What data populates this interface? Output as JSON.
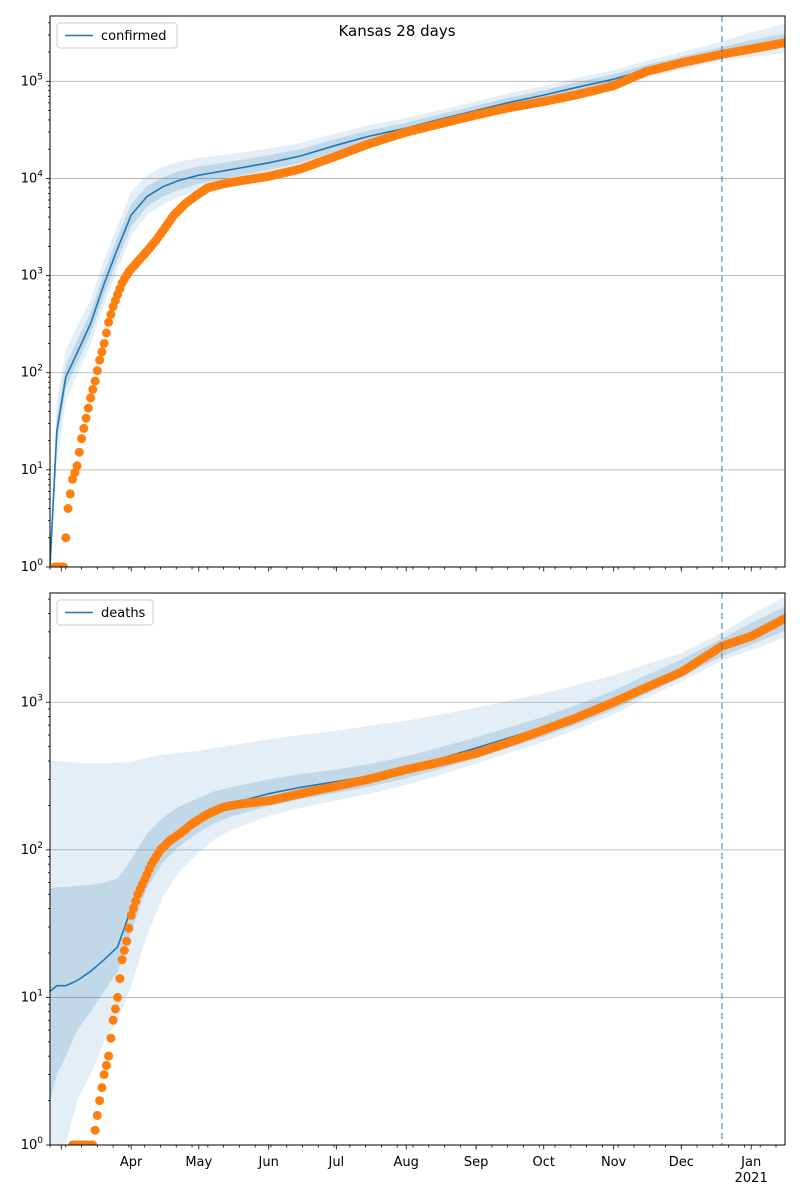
{
  "title": "Kansas 28 days",
  "colors": {
    "model": "#1f77b4",
    "observed": "#ff7f0e",
    "band": "#1f77b4",
    "grid": "#b0b0b0",
    "forecast_line": "#1f77b4"
  },
  "chart_data": [
    {
      "type": "line",
      "name": "confirmed",
      "y_scale": "log",
      "ylim": [
        1,
        470000
      ],
      "xlim": [
        "2020-02-25",
        "2021-01-16"
      ],
      "grid": "y-major",
      "legend": "top-left",
      "x_ticks": [
        "Apr",
        "May",
        "Jun",
        "Jul",
        "Aug",
        "Sep",
        "Oct",
        "Nov",
        "Dec",
        "Jan"
      ],
      "x_tick_sublabel": "2021",
      "y_ticks": [
        "10^0",
        "10^1",
        "10^2",
        "10^3",
        "10^4",
        "10^5"
      ],
      "forecast_start": "2020-12-19",
      "model": {
        "x": [
          "2020-02-25",
          "2020-02-28",
          "2020-03-03",
          "2020-03-08",
          "2020-03-14",
          "2020-03-20",
          "2020-03-26",
          "2020-04-01",
          "2020-04-08",
          "2020-04-15",
          "2020-04-22",
          "2020-05-01",
          "2020-05-08",
          "2020-05-15",
          "2020-06-01",
          "2020-06-15",
          "2020-07-01",
          "2020-07-15",
          "2020-08-01",
          "2020-08-15",
          "2020-09-01",
          "2020-09-15",
          "2020-10-01",
          "2020-10-15",
          "2020-11-01",
          "2020-11-15",
          "2020-12-01",
          "2020-12-19",
          "2021-01-01",
          "2021-01-16"
        ],
        "y": [
          1,
          25,
          90,
          160,
          320,
          820,
          1900,
          4200,
          6500,
          8200,
          9500,
          10800,
          11500,
          12300,
          14500,
          17000,
          22000,
          27000,
          33000,
          40000,
          50000,
          60000,
          72000,
          86000,
          105000,
          130000,
          160000,
          200000,
          230000,
          265000
        ]
      },
      "observed": {
        "x": [
          "2020-02-27",
          "2020-03-02",
          "2020-03-04",
          "2020-03-06",
          "2020-03-08",
          "2020-03-10",
          "2020-03-12",
          "2020-03-14",
          "2020-03-16",
          "2020-03-18",
          "2020-03-20",
          "2020-03-22",
          "2020-03-24",
          "2020-03-26",
          "2020-03-28",
          "2020-03-31",
          "2020-04-04",
          "2020-04-08",
          "2020-04-12",
          "2020-04-16",
          "2020-04-20",
          "2020-04-25",
          "2020-04-30",
          "2020-05-05",
          "2020-05-12",
          "2020-05-20",
          "2020-06-01",
          "2020-06-15",
          "2020-07-01",
          "2020-07-15",
          "2020-08-01",
          "2020-08-15",
          "2020-09-01",
          "2020-09-15",
          "2020-10-01",
          "2020-10-15",
          "2020-11-01",
          "2020-11-15",
          "2020-12-01",
          "2020-12-19",
          "2021-01-01",
          "2021-01-16"
        ],
        "y": [
          1,
          1,
          4,
          8,
          11,
          21,
          34,
          55,
          82,
          135,
          200,
          330,
          480,
          640,
          840,
          1100,
          1400,
          1780,
          2300,
          3100,
          4200,
          5500,
          6700,
          8000,
          8800,
          9500,
          10500,
          12500,
          17000,
          22500,
          30000,
          36000,
          45000,
          53000,
          62000,
          72000,
          90000,
          125000,
          155000,
          190000,
          215000,
          250000
        ]
      },
      "band_inner": {
        "low": [
          1,
          18,
          70,
          125,
          250,
          630,
          1450,
          3200,
          5100,
          6500,
          7600,
          8800,
          9500,
          10200,
          12200,
          14500,
          19000,
          23500,
          29000,
          35500,
          44500,
          53500,
          64000,
          76500,
          94000,
          116000,
          143000,
          178000,
          200000,
          225000
        ],
        "high": [
          1,
          35,
          120,
          215,
          420,
          1080,
          2500,
          5500,
          8300,
          10300,
          11800,
          13300,
          14000,
          14900,
          17300,
          20000,
          25500,
          31000,
          37500,
          45000,
          56000,
          67500,
          81000,
          97000,
          118000,
          146000,
          180000,
          226000,
          265000,
          310000
        ]
      },
      "band_outer": {
        "low": [
          1,
          12,
          50,
          95,
          195,
          500,
          1150,
          2600,
          4200,
          5400,
          6400,
          7500,
          8200,
          8900,
          10800,
          13000,
          17000,
          21000,
          26500,
          32500,
          41000,
          49500,
          59500,
          71000,
          87000,
          107000,
          132000,
          162000,
          178000,
          195000
        ],
        "high": [
          1,
          52,
          170,
          300,
          560,
          1450,
          3300,
          7300,
          10800,
          13200,
          14800,
          16300,
          17000,
          17800,
          20300,
          23200,
          29000,
          35000,
          42000,
          50000,
          62000,
          74500,
          89500,
          107000,
          130000,
          161000,
          199000,
          255000,
          320000,
          390000
        ]
      }
    },
    {
      "type": "line",
      "name": "deaths",
      "y_scale": "log",
      "ylim": [
        1,
        5500
      ],
      "xlim": [
        "2020-02-25",
        "2021-01-16"
      ],
      "grid": "y-major",
      "legend": "top-left",
      "x_ticks": [
        "Apr",
        "May",
        "Jun",
        "Jul",
        "Aug",
        "Sep",
        "Oct",
        "Nov",
        "Dec",
        "Jan"
      ],
      "x_tick_sublabel": "2021",
      "y_ticks": [
        "10^0",
        "10^1",
        "10^2",
        "10^3"
      ],
      "forecast_start": "2020-12-19",
      "model": {
        "x": [
          "2020-02-25",
          "2020-02-28",
          "2020-03-03",
          "2020-03-08",
          "2020-03-14",
          "2020-03-20",
          "2020-03-26",
          "2020-04-01",
          "2020-04-08",
          "2020-04-15",
          "2020-04-22",
          "2020-05-01",
          "2020-05-08",
          "2020-05-15",
          "2020-06-01",
          "2020-06-15",
          "2020-07-01",
          "2020-07-15",
          "2020-08-01",
          "2020-08-15",
          "2020-09-01",
          "2020-09-15",
          "2020-10-01",
          "2020-10-15",
          "2020-11-01",
          "2020-11-15",
          "2020-12-01",
          "2020-12-19",
          "2021-01-01",
          "2021-01-16"
        ],
        "y": [
          11,
          12,
          12,
          13,
          15,
          18,
          22,
          40,
          75,
          108,
          135,
          165,
          190,
          205,
          240,
          265,
          290,
          315,
          360,
          410,
          490,
          570,
          680,
          810,
          1030,
          1300,
          1700,
          2350,
          2900,
          3700
        ]
      },
      "observed": {
        "x": [
          "2020-03-06",
          "2020-03-09",
          "2020-03-12",
          "2020-03-15",
          "2020-03-18",
          "2020-03-20",
          "2020-03-22",
          "2020-03-24",
          "2020-03-26",
          "2020-03-28",
          "2020-03-30",
          "2020-04-01",
          "2020-04-04",
          "2020-04-07",
          "2020-04-10",
          "2020-04-14",
          "2020-04-18",
          "2020-04-23",
          "2020-04-28",
          "2020-05-05",
          "2020-05-12",
          "2020-05-20",
          "2020-06-01",
          "2020-06-15",
          "2020-07-01",
          "2020-07-15",
          "2020-08-01",
          "2020-08-15",
          "2020-09-01",
          "2020-09-15",
          "2020-10-01",
          "2020-10-15",
          "2020-11-01",
          "2020-11-15",
          "2020-12-01",
          "2020-12-19",
          "2021-01-01",
          "2021-01-16"
        ],
        "y": [
          1,
          1,
          1,
          1,
          2,
          3,
          4,
          7,
          10,
          18,
          24,
          36,
          50,
          63,
          80,
          100,
          115,
          130,
          150,
          175,
          195,
          205,
          215,
          240,
          270,
          300,
          350,
          390,
          450,
          530,
          650,
          780,
          1000,
          1250,
          1600,
          2400,
          2800,
          3700
        ]
      },
      "band_inner": {
        "low": [
          2,
          3,
          4,
          6,
          8,
          11,
          15,
          28,
          55,
          82,
          105,
          132,
          152,
          168,
          198,
          220,
          243,
          266,
          306,
          350,
          420,
          490,
          585,
          700,
          890,
          1130,
          1480,
          2050,
          2450,
          3050
        ],
        "high": [
          55,
          56,
          56,
          57,
          58,
          60,
          64,
          86,
          128,
          165,
          195,
          225,
          250,
          265,
          300,
          325,
          350,
          380,
          430,
          490,
          580,
          670,
          800,
          950,
          1200,
          1510,
          1950,
          2700,
          3450,
          4450
        ]
      },
      "band_outer": {
        "low": [
          1,
          1,
          1,
          2,
          3,
          5,
          7,
          12,
          26,
          48,
          70,
          96,
          118,
          135,
          170,
          192,
          216,
          238,
          276,
          318,
          384,
          450,
          540,
          650,
          830,
          1060,
          1390,
          1920,
          2250,
          2750
        ],
        "high": [
          400,
          400,
          395,
          390,
          385,
          385,
          388,
          395,
          420,
          440,
          455,
          470,
          490,
          510,
          560,
          600,
          640,
          690,
          750,
          820,
          920,
          1020,
          1150,
          1300,
          1520,
          1800,
          2150,
          2950,
          3900,
          5200
        ]
      }
    }
  ]
}
